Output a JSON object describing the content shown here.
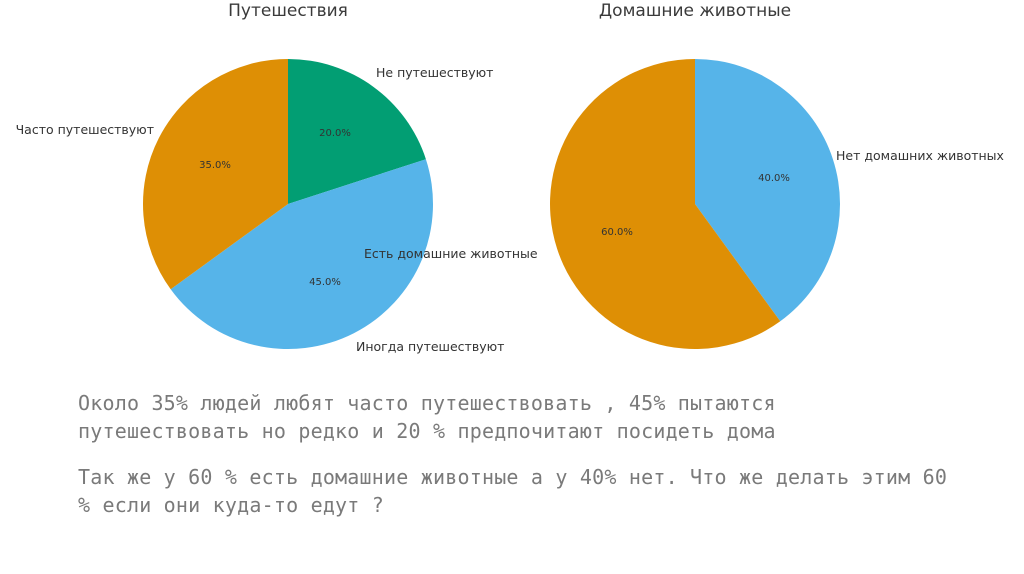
{
  "chart_data": [
    {
      "type": "pie",
      "title": "Путешествия",
      "slices": [
        {
          "label": "Не путешествуют",
          "value": 20,
          "pct_label": "20.0%",
          "color": "#029e73"
        },
        {
          "label": "Есть домашние животные",
          "value": 0,
          "pct_label": "",
          "color": "#56b4e9"
        },
        {
          "label": "Иногда путешествуют",
          "value": 45,
          "pct_label": "45.0%",
          "color": "#56b4e9"
        },
        {
          "label": "Часто путешествуют",
          "value": 35,
          "pct_label": "35.0%",
          "color": "#de8f05"
        }
      ]
    },
    {
      "type": "pie",
      "title": "Домашние животные",
      "slices": [
        {
          "label": "Нет домашних животных",
          "value": 40,
          "pct_label": "40.0%",
          "color": "#56b4e9"
        },
        {
          "label": "",
          "value": 60,
          "pct_label": "60.0%",
          "color": "#de8f05"
        }
      ]
    }
  ],
  "captions": {
    "line1": "Около 35% людей любят часто путешествовать , 45% пытаются путешествовать но редко и 20 % предпочитают посидеть дома",
    "line2": "Так же у 60 % есть домашние животные а у 40% нет. Что же делать этим 60 % если они куда-то едут ?"
  }
}
